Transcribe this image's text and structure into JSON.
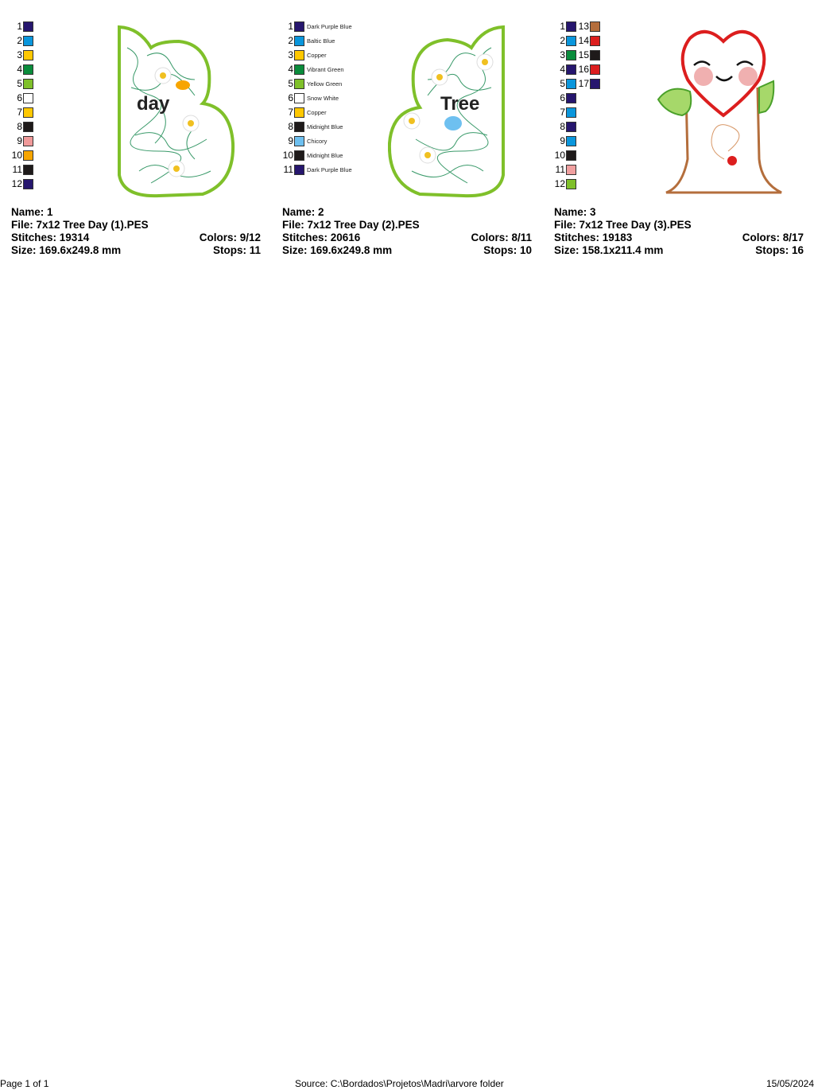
{
  "panels": [
    {
      "colors": [
        {
          "n": "1",
          "c": "#26166e"
        },
        {
          "n": "2",
          "c": "#0a96dc"
        },
        {
          "n": "3",
          "c": "#ffc800"
        },
        {
          "n": "4",
          "c": "#0a8c3c"
        },
        {
          "n": "5",
          "c": "#7fc02a"
        },
        {
          "n": "6",
          "c": "#ffffff"
        },
        {
          "n": "7",
          "c": "#ffc800"
        },
        {
          "n": "8",
          "c": "#1e1a1a"
        },
        {
          "n": "9",
          "c": "#f09a9a"
        },
        {
          "n": "10",
          "c": "#f7a500"
        },
        {
          "n": "11",
          "c": "#1e1a1a"
        },
        {
          "n": "12",
          "c": "#26166e"
        }
      ],
      "design_text": "day",
      "name": "Name: 1",
      "file": "File: 7x12 Tree Day (1).PES",
      "stitches": "Stitches: 19314",
      "colors_count": "Colors: 9/12",
      "size": "Size: 169.6x249.8 mm",
      "stops": "Stops: 11"
    },
    {
      "colors": [
        {
          "n": "1",
          "c": "#26166e",
          "label": "Dark Purple Blue"
        },
        {
          "n": "2",
          "c": "#0a96dc",
          "label": "Baltic Blue"
        },
        {
          "n": "3",
          "c": "#ffc800",
          "label": "Copper"
        },
        {
          "n": "4",
          "c": "#0a8c3c",
          "label": "Vibrant Green"
        },
        {
          "n": "5",
          "c": "#7fc02a",
          "label": "Yellow Green"
        },
        {
          "n": "6",
          "c": "#ffffff",
          "label": "Snow White"
        },
        {
          "n": "7",
          "c": "#ffc800",
          "label": "Copper"
        },
        {
          "n": "8",
          "c": "#1e1a1a",
          "label": "Midnight Blue"
        },
        {
          "n": "9",
          "c": "#6ec0f0",
          "label": "Chicory"
        },
        {
          "n": "10",
          "c": "#1e1a1a",
          "label": "Midnight Blue"
        },
        {
          "n": "11",
          "c": "#26166e",
          "label": "Dark Purple Blue"
        }
      ],
      "design_text": "Tree",
      "name": "Name: 2",
      "file": "File: 7x12 Tree Day (2).PES",
      "stitches": "Stitches: 20616",
      "colors_count": "Colors: 8/11",
      "size": "Size: 169.6x249.8 mm",
      "stops": "Stops: 10"
    },
    {
      "colors": [
        {
          "n": "1",
          "c": "#26166e"
        },
        {
          "n": "2",
          "c": "#0a96dc"
        },
        {
          "n": "3",
          "c": "#0a8c3c"
        },
        {
          "n": "4",
          "c": "#26166e"
        },
        {
          "n": "5",
          "c": "#0a96dc"
        },
        {
          "n": "6",
          "c": "#26166e"
        },
        {
          "n": "7",
          "c": "#0a96dc"
        },
        {
          "n": "8",
          "c": "#26166e"
        },
        {
          "n": "9",
          "c": "#0a96dc"
        },
        {
          "n": "10",
          "c": "#1e1a1a"
        },
        {
          "n": "11",
          "c": "#f0a0a0"
        },
        {
          "n": "12",
          "c": "#7fc02a"
        },
        {
          "n": "13",
          "c": "#b46e3c"
        },
        {
          "n": "14",
          "c": "#dc1e1e"
        },
        {
          "n": "15",
          "c": "#1e1a1a"
        },
        {
          "n": "16",
          "c": "#dc1e1e"
        },
        {
          "n": "17",
          "c": "#26166e"
        }
      ],
      "name": "Name: 3",
      "file": "File: 7x12 Tree Day (3).PES",
      "stitches": "Stitches: 19183",
      "colors_count": "Colors: 8/17",
      "size": "Size: 158.1x211.4 mm",
      "stops": "Stops: 16"
    }
  ],
  "footer": {
    "page": "Page 1 of 1",
    "source": "Source: C:\\Bordados\\Projetos\\Madri\\arvore folder",
    "date": "15/05/2024"
  }
}
